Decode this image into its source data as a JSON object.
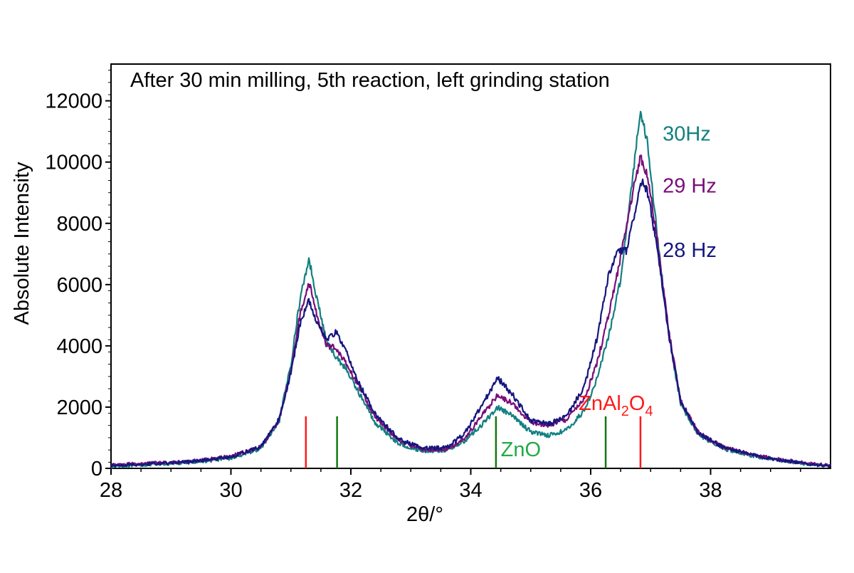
{
  "colors": {
    "hz30": "#138080",
    "hz29": "#7a0e7a",
    "hz28": "#16167e",
    "znal2o4": "#ff1a1a",
    "zno": "#117711",
    "zno_label": "#22aa44"
  },
  "chart_data": {
    "type": "line",
    "title": "After 30 min milling, 5th reaction, left grinding station",
    "xlabel": "2θ/°",
    "ylabel": "Absolute Intensity",
    "xlim": [
      28,
      40
    ],
    "ylim": [
      0,
      13200
    ],
    "x_ticks": [
      28,
      30,
      32,
      34,
      36,
      38
    ],
    "y_ticks": [
      0,
      2000,
      4000,
      6000,
      8000,
      10000,
      12000
    ],
    "grid": false,
    "legend": "inline-right",
    "series": [
      {
        "name": "30Hz",
        "color_key": "hz30",
        "points": [
          [
            28,
            60
          ],
          [
            29,
            150
          ],
          [
            29.5,
            220
          ],
          [
            30,
            330
          ],
          [
            30.5,
            650
          ],
          [
            30.8,
            1500
          ],
          [
            31,
            3400
          ],
          [
            31.15,
            5500
          ],
          [
            31.3,
            6850
          ],
          [
            31.45,
            5400
          ],
          [
            31.6,
            4100
          ],
          [
            31.75,
            3650
          ],
          [
            31.9,
            3300
          ],
          [
            32.1,
            2600
          ],
          [
            32.4,
            1500
          ],
          [
            32.8,
            800
          ],
          [
            33.2,
            560
          ],
          [
            33.6,
            590
          ],
          [
            33.9,
            900
          ],
          [
            34.2,
            1450
          ],
          [
            34.45,
            2000
          ],
          [
            34.7,
            1700
          ],
          [
            35,
            1200
          ],
          [
            35.3,
            1080
          ],
          [
            35.6,
            1250
          ],
          [
            35.9,
            1900
          ],
          [
            36.1,
            2900
          ],
          [
            36.3,
            4300
          ],
          [
            36.5,
            6200
          ],
          [
            36.7,
            9500
          ],
          [
            36.83,
            11700
          ],
          [
            36.95,
            10600
          ],
          [
            37.1,
            7800
          ],
          [
            37.3,
            4400
          ],
          [
            37.5,
            2100
          ],
          [
            37.8,
            1100
          ],
          [
            38.2,
            650
          ],
          [
            38.6,
            450
          ],
          [
            39,
            300
          ],
          [
            39.5,
            170
          ],
          [
            40,
            70
          ]
        ]
      },
      {
        "name": "29 Hz",
        "color_key": "hz29",
        "points": [
          [
            28,
            120
          ],
          [
            29,
            200
          ],
          [
            29.5,
            260
          ],
          [
            30,
            400
          ],
          [
            30.5,
            700
          ],
          [
            30.8,
            1550
          ],
          [
            31,
            3200
          ],
          [
            31.15,
            5000
          ],
          [
            31.3,
            6100
          ],
          [
            31.45,
            4900
          ],
          [
            31.6,
            4000
          ],
          [
            31.75,
            3950
          ],
          [
            31.9,
            3500
          ],
          [
            32.1,
            2800
          ],
          [
            32.4,
            1700
          ],
          [
            32.8,
            900
          ],
          [
            33.2,
            620
          ],
          [
            33.6,
            620
          ],
          [
            33.9,
            980
          ],
          [
            34.2,
            1750
          ],
          [
            34.45,
            2400
          ],
          [
            34.7,
            2100
          ],
          [
            35,
            1500
          ],
          [
            35.3,
            1400
          ],
          [
            35.6,
            1600
          ],
          [
            35.9,
            2300
          ],
          [
            36.1,
            3400
          ],
          [
            36.3,
            5000
          ],
          [
            36.5,
            6900
          ],
          [
            36.7,
            9000
          ],
          [
            36.83,
            10200
          ],
          [
            36.95,
            9500
          ],
          [
            37.1,
            7600
          ],
          [
            37.3,
            4500
          ],
          [
            37.5,
            2200
          ],
          [
            37.8,
            1150
          ],
          [
            38.2,
            700
          ],
          [
            38.6,
            500
          ],
          [
            39,
            330
          ],
          [
            39.5,
            200
          ],
          [
            40,
            90
          ]
        ]
      },
      {
        "name": "28 Hz",
        "color_key": "hz28",
        "points": [
          [
            28,
            90
          ],
          [
            29,
            170
          ],
          [
            29.5,
            250
          ],
          [
            30,
            380
          ],
          [
            30.5,
            700
          ],
          [
            30.8,
            1600
          ],
          [
            31,
            3100
          ],
          [
            31.15,
            4700
          ],
          [
            31.3,
            5500
          ],
          [
            31.45,
            4700
          ],
          [
            31.6,
            4200
          ],
          [
            31.75,
            4450
          ],
          [
            31.9,
            3900
          ],
          [
            32.1,
            2900
          ],
          [
            32.4,
            1800
          ],
          [
            32.8,
            950
          ],
          [
            33.2,
            650
          ],
          [
            33.6,
            680
          ],
          [
            33.9,
            1150
          ],
          [
            34.2,
            2100
          ],
          [
            34.45,
            2950
          ],
          [
            34.7,
            2400
          ],
          [
            35,
            1550
          ],
          [
            35.3,
            1450
          ],
          [
            35.6,
            1700
          ],
          [
            35.9,
            2700
          ],
          [
            36.1,
            4200
          ],
          [
            36.3,
            6300
          ],
          [
            36.45,
            7100
          ],
          [
            36.6,
            7100
          ],
          [
            36.75,
            8500
          ],
          [
            36.85,
            9400
          ],
          [
            36.95,
            9000
          ],
          [
            37.1,
            7300
          ],
          [
            37.3,
            4400
          ],
          [
            37.5,
            2200
          ],
          [
            37.8,
            1150
          ],
          [
            38.2,
            700
          ],
          [
            38.6,
            480
          ],
          [
            39,
            320
          ],
          [
            39.5,
            180
          ],
          [
            40,
            60
          ]
        ]
      }
    ],
    "series_labels": [
      {
        "text": "30Hz",
        "color_key": "hz30",
        "x": 37.2,
        "y": 10700
      },
      {
        "text": "29 Hz",
        "color_key": "hz29",
        "x": 37.2,
        "y": 9000
      },
      {
        "text": "28 Hz",
        "color_key": "hz28",
        "x": 37.2,
        "y": 6900
      }
    ],
    "reference_lines": [
      {
        "phase": "ZnAl2O4",
        "color_key": "znal2o4",
        "x": [
          31.25,
          36.83
        ],
        "height": 1700
      },
      {
        "phase": "ZnO",
        "color_key": "zno",
        "x": [
          31.77,
          34.42,
          36.25
        ],
        "height": 1700
      }
    ],
    "annotations": [
      {
        "text": "ZnO",
        "color_key": "zno_label",
        "x": 34.5,
        "y": 400
      },
      {
        "text": "ZnAl2O4",
        "main": "ZnAl",
        "sub1": "2",
        "mid": "O",
        "sub2": "4",
        "color_key": "znal2o4",
        "x": 35.8,
        "y": 1900
      }
    ]
  }
}
